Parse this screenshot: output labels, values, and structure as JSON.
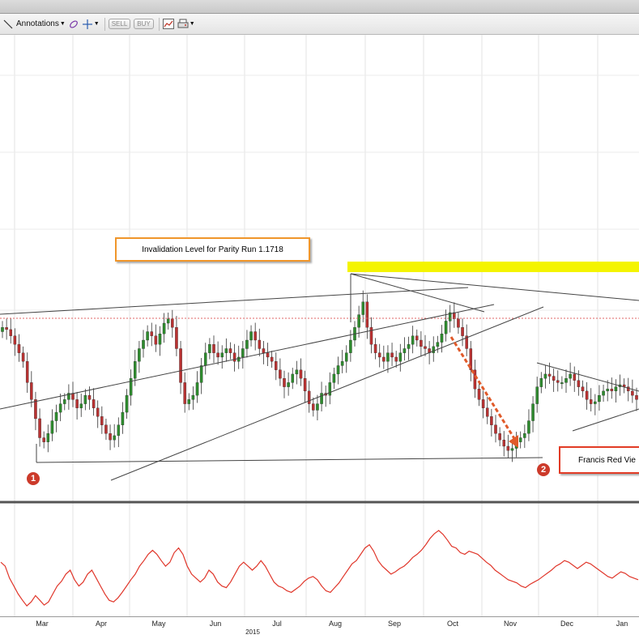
{
  "toolbar": {
    "annotations_label": "Annotations",
    "sell_label": "SELL",
    "buy_label": "BUY",
    "icons": [
      "trend-line-icon",
      "eraser-icon",
      "crosshair-icon",
      "chart-type-icon",
      "print-icon"
    ]
  },
  "annotations": {
    "invalidation": "Invalidation Level for Parity Run 1.1718",
    "francis": "Francis Red Vie",
    "marker1": "1",
    "marker2": "2"
  },
  "colors": {
    "candle_up": "#2e8b2e",
    "candle_down": "#b83232",
    "highlight": "#f4f400",
    "dotted_level": "#e06666",
    "oscillator": "#e0362a",
    "arrow": "#e05a2a"
  },
  "chart_data": [
    {
      "type": "candlestick",
      "title": "",
      "months": [
        "Mar",
        "Apr",
        "May",
        "Jun",
        "Jul",
        "Aug",
        "Sep",
        "Oct",
        "Nov",
        "Dec",
        "Jan"
      ],
      "year_label": "2015",
      "invalidation_level": 1.1718,
      "close_series": [
        0.56,
        0.55,
        0.52,
        0.48,
        0.44,
        0.4,
        0.3,
        0.22,
        0.13,
        0.04,
        0.02,
        0.06,
        0.12,
        0.16,
        0.2,
        0.22,
        0.25,
        0.22,
        0.18,
        0.2,
        0.24,
        0.22,
        0.18,
        0.14,
        0.1,
        0.06,
        0.03,
        0.05,
        0.1,
        0.16,
        0.24,
        0.32,
        0.4,
        0.46,
        0.5,
        0.54,
        0.52,
        0.48,
        0.53,
        0.58,
        0.6,
        0.56,
        0.46,
        0.3,
        0.2,
        0.22,
        0.24,
        0.3,
        0.38,
        0.44,
        0.48,
        0.44,
        0.42,
        0.44,
        0.46,
        0.44,
        0.4,
        0.42,
        0.46,
        0.5,
        0.54,
        0.5,
        0.46,
        0.44,
        0.42,
        0.4,
        0.36,
        0.32,
        0.28,
        0.3,
        0.34,
        0.36,
        0.32,
        0.26,
        0.2,
        0.17,
        0.2,
        0.25,
        0.24,
        0.3,
        0.34,
        0.38,
        0.4,
        0.44,
        0.5,
        0.56,
        0.62,
        0.68,
        0.56,
        0.48,
        0.44,
        0.42,
        0.4,
        0.44,
        0.42,
        0.4,
        0.44,
        0.46,
        0.48,
        0.52,
        0.5,
        0.47,
        0.46,
        0.44,
        0.47,
        0.49,
        0.53,
        0.59,
        0.63,
        0.6,
        0.56,
        0.52,
        0.46,
        0.36,
        0.27,
        0.22,
        0.18,
        0.14,
        0.1,
        0.06,
        0.03,
        0.0,
        -0.02,
        -0.01,
        0.02,
        0.04,
        0.06,
        0.12,
        0.2,
        0.28,
        0.32,
        0.34,
        0.33,
        0.31,
        0.3,
        0.3,
        0.32,
        0.34,
        0.31,
        0.28,
        0.26,
        0.22,
        0.2,
        0.21,
        0.24,
        0.26,
        0.27,
        0.26,
        0.28,
        0.29,
        0.28,
        0.26,
        0.24,
        0.22
      ],
      "oscillator_series": [
        0.6,
        0.55,
        0.4,
        0.3,
        0.2,
        0.12,
        0.05,
        0.1,
        0.18,
        0.12,
        0.06,
        0.1,
        0.2,
        0.3,
        0.36,
        0.45,
        0.5,
        0.38,
        0.3,
        0.35,
        0.45,
        0.5,
        0.4,
        0.3,
        0.2,
        0.12,
        0.1,
        0.15,
        0.22,
        0.3,
        0.38,
        0.45,
        0.55,
        0.62,
        0.7,
        0.75,
        0.7,
        0.62,
        0.55,
        0.6,
        0.72,
        0.78,
        0.7,
        0.55,
        0.45,
        0.4,
        0.35,
        0.4,
        0.5,
        0.45,
        0.35,
        0.3,
        0.28,
        0.35,
        0.45,
        0.55,
        0.6,
        0.55,
        0.5,
        0.55,
        0.62,
        0.55,
        0.45,
        0.35,
        0.3,
        0.28,
        0.24,
        0.22,
        0.26,
        0.3,
        0.36,
        0.4,
        0.42,
        0.38,
        0.3,
        0.24,
        0.22,
        0.28,
        0.34,
        0.42,
        0.5,
        0.58,
        0.62,
        0.7,
        0.78,
        0.82,
        0.74,
        0.62,
        0.55,
        0.5,
        0.45,
        0.48,
        0.52,
        0.55,
        0.6,
        0.66,
        0.7,
        0.75,
        0.82,
        0.9,
        0.96,
        1.0,
        0.95,
        0.88,
        0.8,
        0.78,
        0.72,
        0.7,
        0.74,
        0.72,
        0.7,
        0.65,
        0.6,
        0.56,
        0.5,
        0.46,
        0.42,
        0.38,
        0.36,
        0.34,
        0.3,
        0.28,
        0.32,
        0.35,
        0.38,
        0.42,
        0.46,
        0.5,
        0.55,
        0.58,
        0.62,
        0.6,
        0.56,
        0.52,
        0.56,
        0.6,
        0.58,
        0.54,
        0.5,
        0.46,
        0.42,
        0.4,
        0.44,
        0.48,
        0.46,
        0.42,
        0.4,
        0.38
      ]
    }
  ]
}
